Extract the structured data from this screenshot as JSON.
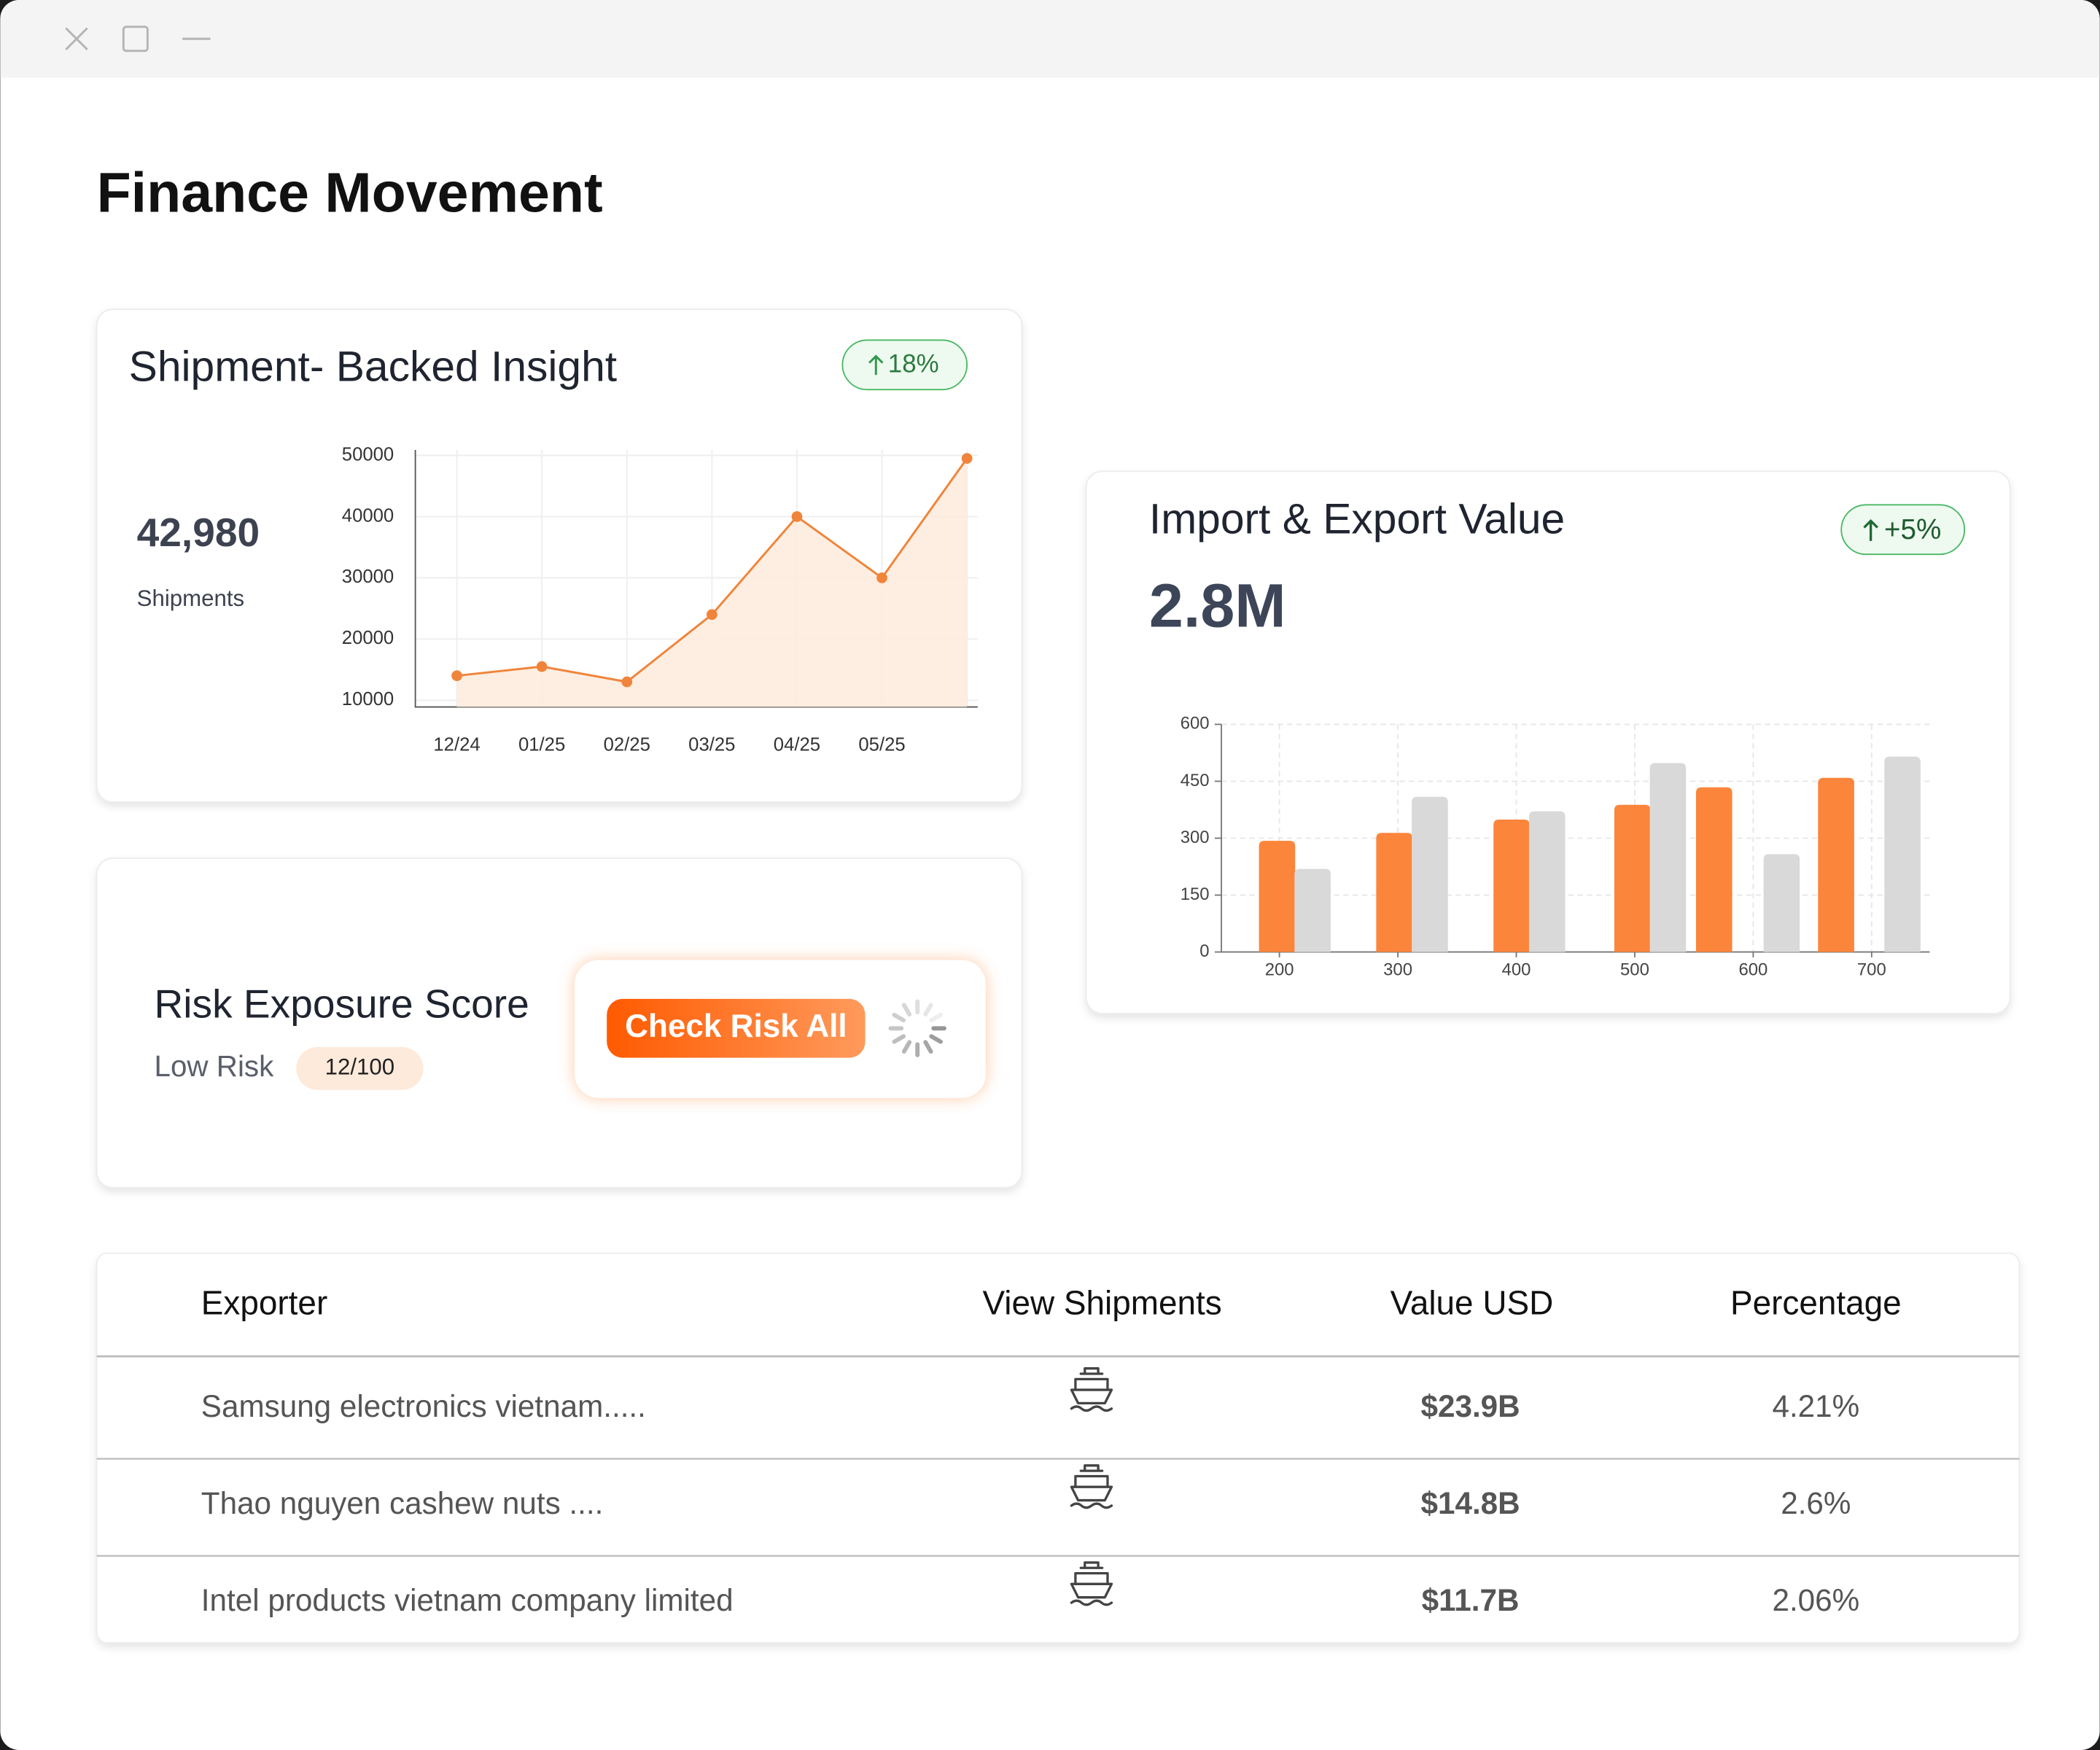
{
  "header": {
    "title": "Finance Movement"
  },
  "shipment_card": {
    "title": "Shipment- Backed Insight",
    "badge": "18%",
    "value": "42,980",
    "value_label": "Shipments",
    "chart_data": {
      "type": "line",
      "categories": [
        "12/24",
        "01/25",
        "02/25",
        "03/25",
        "04/25",
        "05/25",
        null
      ],
      "values": [
        14000,
        15500,
        13000,
        24000,
        40000,
        30000,
        49500
      ],
      "color": "#f0843a",
      "ylim": [
        8900,
        50900
      ],
      "yticks": [
        10000,
        20000,
        30000,
        40000,
        50000
      ],
      "grid": true
    }
  },
  "trade_card": {
    "title": "Import & Export Value",
    "badge": "+5%",
    "value": "2.8M",
    "chart_data": {
      "type": "bar",
      "series": [
        {
          "color": "#fb853b",
          "x": [
            198,
            297,
            396,
            498,
            567,
            670
          ],
          "values": [
            293,
            314,
            349,
            388,
            434,
            459
          ]
        },
        {
          "color": "#d9d9d9",
          "x": [
            228,
            327,
            426,
            528,
            624,
            726
          ],
          "values": [
            219,
            409,
            371,
            498,
            258,
            515
          ]
        }
      ],
      "xlim": [
        151,
        749
      ],
      "xticks": [
        200,
        300,
        400,
        500,
        600,
        700
      ],
      "ylim": [
        0,
        600
      ],
      "yticks": [
        0,
        150,
        300,
        450,
        600
      ],
      "grid": true
    }
  },
  "risk_card": {
    "title": "Risk Exposure Score",
    "level": "Low Risk",
    "score": "12/100",
    "button": "Check Risk All"
  },
  "table": {
    "headers": [
      "Exporter",
      "View Shipments",
      "Value USD",
      "Percentage"
    ],
    "rows": [
      [
        "Samsung electronics vietnam.....",
        "$23.9B",
        "4.21%"
      ],
      [
        "Thao nguyen cashew nuts ....",
        "$14.8B",
        "2.6%"
      ],
      [
        "Intel products vietnam company limited",
        "$11.7B",
        "2.06%"
      ]
    ]
  }
}
